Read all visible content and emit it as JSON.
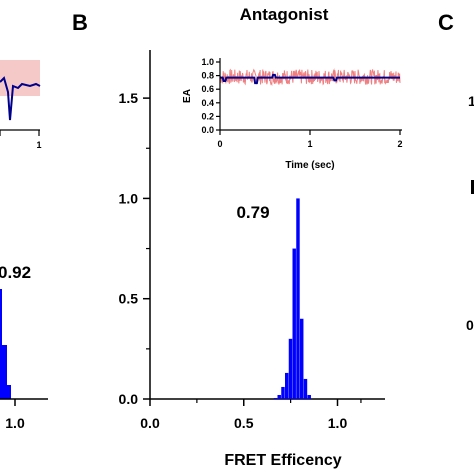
{
  "panels": {
    "B": {
      "letter": "B",
      "title": "Antagonist"
    },
    "C": {
      "letter": "C"
    }
  },
  "left_partial": {
    "peak_label": "0.92",
    "x_tick_label": "1.0",
    "inset_x_tick_label": "1"
  },
  "colors": {
    "histogram": "#0000ff",
    "trace_raw": "#f08080",
    "trace_fit": "#00008b",
    "axis": "#000000"
  },
  "chart_data": [
    {
      "type": "bar",
      "title": "Antagonist",
      "xlabel": "FRET Efficency",
      "ylabel": "",
      "xlim": [
        0.0,
        1.2
      ],
      "ylim": [
        0.0,
        1.7
      ],
      "x_ticks": [
        "0.0",
        "0.5",
        "1.0"
      ],
      "y_ticks": [
        "0.0",
        "0.5",
        "1.0",
        "1.5"
      ],
      "peak_label": "0.79",
      "bin_width": 0.02,
      "x": [
        0.67,
        0.69,
        0.71,
        0.73,
        0.75,
        0.77,
        0.79,
        0.81,
        0.83,
        0.85
      ],
      "values": [
        0.005,
        0.02,
        0.06,
        0.13,
        0.3,
        0.75,
        1.0,
        0.4,
        0.1,
        0.02
      ]
    },
    {
      "type": "line",
      "title": "",
      "xlabel": "Time (sec)",
      "ylabel": "EA",
      "xlim": [
        0,
        2
      ],
      "ylim": [
        0.0,
        1.0
      ],
      "x_ticks": [
        "0",
        "1",
        "2"
      ],
      "y_ticks": [
        "0.0",
        "0.2",
        "0.4",
        "0.6",
        "0.8",
        "1.0"
      ],
      "series": [
        {
          "values_mean": 0.78,
          "noise": 0.07,
          "role": "raw"
        },
        {
          "values_mean": 0.77,
          "role": "fit"
        }
      ]
    }
  ]
}
